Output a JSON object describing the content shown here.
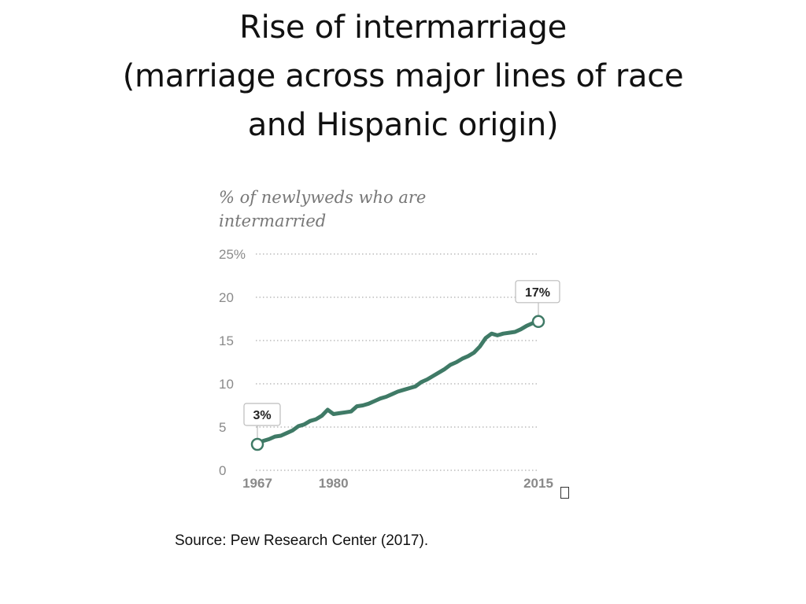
{
  "slide": {
    "title_lines": [
      "Rise of intermarriage",
      "(marriage across major lines of race",
      "and Hispanic origin)"
    ],
    "source": "Source:  Pew Research Center (2017)."
  },
  "chart_data": {
    "type": "line",
    "title": "% of newlyweds who are intermarried",
    "subtitle_lines": [
      "% of newlyweds who are",
      "intermarried"
    ],
    "xlabel": "",
    "ylabel": "",
    "xlim": [
      1967,
      2015
    ],
    "ylim": [
      0,
      25
    ],
    "y_ticks": [
      0,
      5,
      10,
      15,
      20,
      25
    ],
    "y_tick_labels": [
      "0",
      "5",
      "10",
      "15",
      "20",
      "25%"
    ],
    "x_ticks": [
      1967,
      1980,
      2015
    ],
    "x_tick_labels": [
      "1967",
      "1980",
      "2015"
    ],
    "grid": "horizontal dotted",
    "line_color": "#3f7a66",
    "grid_color": "#bbbbbb",
    "series": [
      {
        "x": [
          1967,
          1968,
          1969,
          1970,
          1971,
          1972,
          1973,
          1974,
          1975,
          1976,
          1977,
          1978,
          1979,
          1980,
          1981,
          1982,
          1983,
          1984,
          1985,
          1986,
          1987,
          1988,
          1989,
          1990,
          1991,
          1992,
          1993,
          1994,
          1995,
          1996,
          1997,
          1998,
          1999,
          2000,
          2001,
          2002,
          2003,
          2004,
          2005,
          2006,
          2007,
          2008,
          2009,
          2010,
          2011,
          2012,
          2013,
          2014,
          2015
        ],
        "values": [
          3.0,
          3.4,
          3.6,
          3.9,
          4.0,
          4.3,
          4.6,
          5.1,
          5.3,
          5.7,
          5.9,
          6.3,
          7.0,
          6.5,
          6.6,
          6.7,
          6.8,
          7.4,
          7.5,
          7.7,
          8.0,
          8.3,
          8.5,
          8.8,
          9.1,
          9.3,
          9.5,
          9.7,
          10.2,
          10.5,
          10.9,
          11.3,
          11.7,
          12.2,
          12.5,
          12.9,
          13.2,
          13.6,
          14.3,
          15.3,
          15.8,
          15.6,
          15.8,
          15.9,
          16.0,
          16.3,
          16.7,
          17.0,
          17.2
        ]
      }
    ],
    "annotations": [
      {
        "x": 1967,
        "y": 3.0,
        "label": "3%"
      },
      {
        "x": 2015,
        "y": 17.2,
        "label": "17%"
      }
    ]
  }
}
